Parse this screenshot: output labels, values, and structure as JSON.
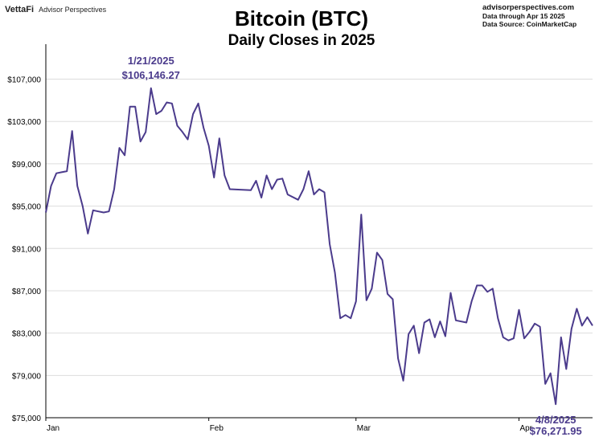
{
  "header": {
    "brand_name": "VettaFi",
    "brand_sub": "Advisor Perspectives",
    "source_site": "advisorperspectives.com",
    "source_through": "Data through Apr 15 2025",
    "source_data": "Data Source: CoinMarketCap"
  },
  "colors": {
    "line": "#4b3b8c",
    "label": "#4b3b8c",
    "grid": "#dddddd",
    "axis": "#000000"
  },
  "chart_data": {
    "type": "line",
    "title": "Bitcoin (BTC)",
    "subtitle": "Daily Closes in 2025",
    "xlabel": "",
    "ylabel": "",
    "x_range": [
      "2025-01-01",
      "2025-04-15"
    ],
    "ylim": [
      75000,
      110000
    ],
    "y_ticks": [
      75000,
      79000,
      83000,
      87000,
      91000,
      95000,
      99000,
      103000,
      107000
    ],
    "y_tick_labels": [
      "$75,000",
      "$79,000",
      "$83,000",
      "$87,000",
      "$91,000",
      "$95,000",
      "$99,000",
      "$103,000",
      "$107,000"
    ],
    "x_ticks": [
      {
        "date": "2025-01-01",
        "label": "Jan"
      },
      {
        "date": "2025-02-01",
        "label": "Feb"
      },
      {
        "date": "2025-03-01",
        "label": "Mar"
      },
      {
        "date": "2025-04-01",
        "label": "Apr"
      }
    ],
    "grid": "horizontal",
    "series": [
      {
        "values": [
          [
            "2025-01-01",
            94400
          ],
          [
            "2025-01-02",
            96900
          ],
          [
            "2025-01-03",
            98100
          ],
          [
            "2025-01-04",
            98200
          ],
          [
            "2025-01-05",
            98300
          ],
          [
            "2025-01-06",
            102100
          ],
          [
            "2025-01-07",
            96900
          ],
          [
            "2025-01-08",
            95000
          ],
          [
            "2025-01-09",
            92400
          ],
          [
            "2025-01-10",
            94600
          ],
          [
            "2025-01-11",
            94500
          ],
          [
            "2025-01-12",
            94400
          ],
          [
            "2025-01-13",
            94500
          ],
          [
            "2025-01-14",
            96600
          ],
          [
            "2025-01-15",
            100500
          ],
          [
            "2025-01-16",
            99800
          ],
          [
            "2025-01-17",
            104400
          ],
          [
            "2025-01-18",
            104400
          ],
          [
            "2025-01-19",
            101100
          ],
          [
            "2025-01-20",
            102000
          ],
          [
            "2025-01-21",
            106146.27
          ],
          [
            "2025-01-22",
            103700
          ],
          [
            "2025-01-23",
            104000
          ],
          [
            "2025-01-24",
            104800
          ],
          [
            "2025-01-25",
            104700
          ],
          [
            "2025-01-26",
            102600
          ],
          [
            "2025-01-27",
            102000
          ],
          [
            "2025-01-28",
            101300
          ],
          [
            "2025-01-29",
            103700
          ],
          [
            "2025-01-30",
            104700
          ],
          [
            "2025-01-31",
            102400
          ],
          [
            "2025-02-01",
            100700
          ],
          [
            "2025-02-02",
            97700
          ],
          [
            "2025-02-03",
            101400
          ],
          [
            "2025-02-04",
            97900
          ],
          [
            "2025-02-05",
            96600
          ],
          [
            "2025-02-09",
            96500
          ],
          [
            "2025-02-10",
            97400
          ],
          [
            "2025-02-11",
            95800
          ],
          [
            "2025-02-12",
            97900
          ],
          [
            "2025-02-13",
            96600
          ],
          [
            "2025-02-14",
            97500
          ],
          [
            "2025-02-15",
            97600
          ],
          [
            "2025-02-16",
            96100
          ],
          [
            "2025-02-18",
            95600
          ],
          [
            "2025-02-19",
            96600
          ],
          [
            "2025-02-20",
            98300
          ],
          [
            "2025-02-21",
            96100
          ],
          [
            "2025-02-22",
            96600
          ],
          [
            "2025-02-23",
            96300
          ],
          [
            "2025-02-24",
            91400
          ],
          [
            "2025-02-25",
            88700
          ],
          [
            "2025-02-26",
            84400
          ],
          [
            "2025-02-27",
            84700
          ],
          [
            "2025-02-28",
            84400
          ],
          [
            "2025-03-01",
            86000
          ],
          [
            "2025-03-02",
            94200
          ],
          [
            "2025-03-03",
            86100
          ],
          [
            "2025-03-04",
            87200
          ],
          [
            "2025-03-05",
            90600
          ],
          [
            "2025-03-06",
            89900
          ],
          [
            "2025-03-07",
            86700
          ],
          [
            "2025-03-08",
            86200
          ],
          [
            "2025-03-09",
            80600
          ],
          [
            "2025-03-10",
            78500
          ],
          [
            "2025-03-11",
            82900
          ],
          [
            "2025-03-12",
            83700
          ],
          [
            "2025-03-13",
            81100
          ],
          [
            "2025-03-14",
            84000
          ],
          [
            "2025-03-15",
            84300
          ],
          [
            "2025-03-16",
            82600
          ],
          [
            "2025-03-17",
            84100
          ],
          [
            "2025-03-18",
            82700
          ],
          [
            "2025-03-19",
            86800
          ],
          [
            "2025-03-20",
            84200
          ],
          [
            "2025-03-22",
            84000
          ],
          [
            "2025-03-23",
            86000
          ],
          [
            "2025-03-24",
            87500
          ],
          [
            "2025-03-25",
            87500
          ],
          [
            "2025-03-26",
            86900
          ],
          [
            "2025-03-27",
            87200
          ],
          [
            "2025-03-28",
            84400
          ],
          [
            "2025-03-29",
            82600
          ],
          [
            "2025-03-30",
            82300
          ],
          [
            "2025-03-31",
            82500
          ],
          [
            "2025-04-01",
            85200
          ],
          [
            "2025-04-02",
            82500
          ],
          [
            "2025-04-03",
            83100
          ],
          [
            "2025-04-04",
            83900
          ],
          [
            "2025-04-05",
            83600
          ],
          [
            "2025-04-06",
            78200
          ],
          [
            "2025-04-07",
            79200
          ],
          [
            "2025-04-08",
            76271.95
          ],
          [
            "2025-04-09",
            82600
          ],
          [
            "2025-04-10",
            79600
          ],
          [
            "2025-04-11",
            83400
          ],
          [
            "2025-04-12",
            85300
          ],
          [
            "2025-04-13",
            83700
          ],
          [
            "2025-04-14",
            84500
          ],
          [
            "2025-04-15",
            83700
          ]
        ]
      }
    ],
    "annotations": [
      {
        "date_label": "1/21/2025",
        "value_label": "$106,146.27",
        "date": "2025-01-21",
        "value": 106146.27,
        "position": "above"
      },
      {
        "date_label": "4/8/2025",
        "value_label": "$76,271.95",
        "date": "2025-04-08",
        "value": 76271.95,
        "position": "below"
      }
    ]
  }
}
